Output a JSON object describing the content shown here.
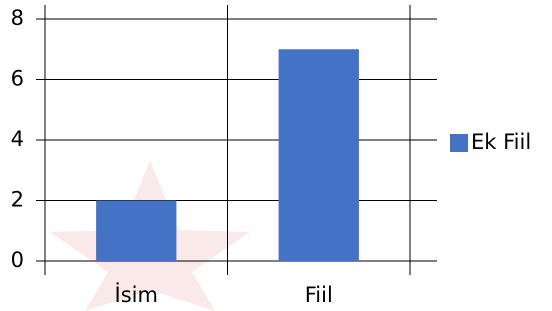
{
  "chart_data": {
    "type": "bar",
    "categories": [
      "İsim",
      "Fiil"
    ],
    "series": [
      {
        "name": "Ek Fiil",
        "color": "#4472c4",
        "values": [
          2,
          7
        ]
      }
    ],
    "ylim": [
      0,
      8
    ],
    "yticks": [
      0,
      2,
      4,
      6,
      8
    ],
    "grid": true,
    "legend": "right"
  }
}
